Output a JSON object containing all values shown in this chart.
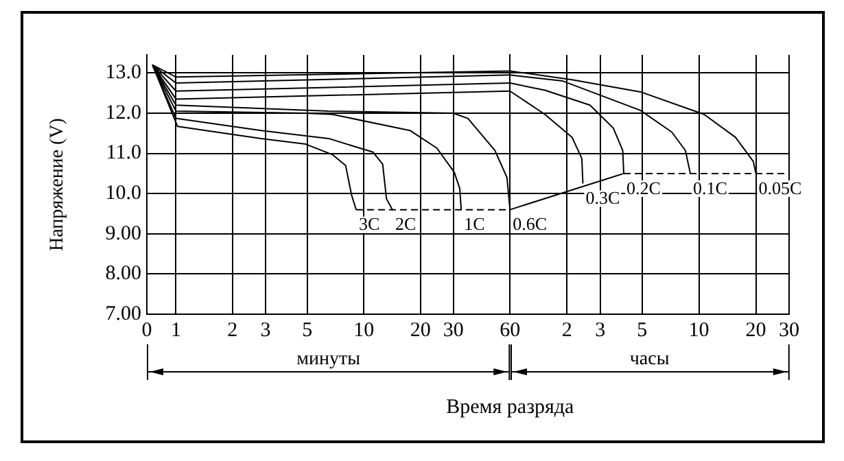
{
  "chart_data": [
    {
      "type": "line",
      "xlabel": "Время разряда",
      "ylabel": "Напряжение (V)",
      "log": "x",
      "xlim": [
        0,
        60
      ],
      "ylim": [
        7,
        13.45
      ],
      "xticks": [
        0,
        1,
        2,
        3,
        5,
        10,
        20,
        30,
        60
      ],
      "yticks": [
        {
          "value": 7,
          "label": "7.00"
        },
        {
          "value": 8,
          "label": "8.00"
        },
        {
          "value": 9,
          "label": "9.00"
        },
        {
          "value": 10,
          "label": "10.0"
        },
        {
          "value": 11,
          "label": "11.0"
        },
        {
          "value": 12,
          "label": "12.0"
        },
        {
          "value": 13,
          "label": "13.0"
        }
      ],
      "grid": true,
      "legend": false,
      "marker": "none",
      "series": [
        {
          "name": "3C",
          "color": "#000000",
          "x": [
            0.75,
            1.02,
            1.64,
            2.84,
            4.9,
            6.8,
            8.0,
            8.6,
            9.1
          ],
          "values": [
            13.2,
            11.67,
            11.53,
            11.37,
            11.23,
            10.97,
            10.7,
            9.97,
            9.6
          ]
        },
        {
          "name": "2C",
          "color": "#000000",
          "x": [
            0.75,
            1.0,
            2.84,
            6.5,
            11.2,
            12.6,
            13.2,
            14.2
          ],
          "values": [
            13.2,
            11.87,
            11.57,
            11.37,
            11.03,
            10.73,
            9.87,
            9.6
          ]
        },
        {
          "name": "1C",
          "color": "#000000",
          "x": [
            0.75,
            1.0,
            4.9,
            6.8,
            17.6,
            24.5,
            30.3,
            32.4,
            33
          ],
          "values": [
            13.2,
            12.05,
            12.0,
            11.97,
            11.57,
            11.13,
            10.53,
            10.13,
            9.6
          ]
        },
        {
          "name": "0.6C",
          "color": "#000000",
          "x": [
            0.75,
            1.0,
            6.5,
            30,
            35.8,
            49.9,
            57.8,
            60
          ],
          "values": [
            13.2,
            12.2,
            12.05,
            12.0,
            11.87,
            11.07,
            10.4,
            9.6
          ]
        },
        {
          "color": "#000000",
          "x": [
            0.75,
            1,
            60
          ],
          "values": [
            13.2,
            12.35,
            12.55
          ]
        },
        {
          "color": "#000000",
          "x": [
            0.75,
            1,
            60
          ],
          "values": [
            13.2,
            12.55,
            12.75
          ]
        },
        {
          "color": "#000000",
          "x": [
            0.75,
            1,
            60
          ],
          "values": [
            13.2,
            12.75,
            12.95
          ]
        },
        {
          "color": "#000000",
          "x": [
            0.75,
            1,
            60
          ],
          "values": [
            13.2,
            12.9,
            13.05
          ]
        },
        {
          "color": "#000000",
          "x": [
            9.1,
            60
          ],
          "values": [
            9.6,
            9.6
          ],
          "line_style": "dashed"
        }
      ],
      "annotations": [
        "минуты"
      ]
    },
    {
      "type": "line",
      "log": "x",
      "xlim": [
        1,
        30
      ],
      "ylim": [
        7,
        13.45
      ],
      "tick_labels": "x",
      "xticks": [
        2,
        3,
        5,
        10,
        20,
        30
      ],
      "yticks": [
        7,
        8,
        9,
        10,
        11,
        12,
        13
      ],
      "grid": true,
      "legend": false,
      "marker": "none",
      "series": [
        {
          "name": "0.3C",
          "color": "#000000",
          "x": [
            1,
            1.53,
            2.13,
            2.4,
            2.43
          ],
          "values": [
            12.55,
            11.97,
            11.4,
            10.87,
            10.25
          ]
        },
        {
          "name": "0.2C",
          "color": "#000000",
          "x": [
            1,
            1.53,
            2.65,
            3.52,
            3.95,
            4
          ],
          "values": [
            12.75,
            12.57,
            12.2,
            11.63,
            11.07,
            10.5
          ]
        },
        {
          "name": "0.1C",
          "color": "#000000",
          "x": [
            1,
            1.9,
            4.9,
            7.18,
            8.48,
            9.0
          ],
          "values": [
            12.95,
            12.8,
            12.07,
            11.53,
            11.07,
            10.5
          ]
        },
        {
          "name": "0.05C",
          "color": "#000000",
          "x": [
            1,
            2.13,
            4.9,
            10.65,
            15.6,
            19.4,
            20
          ],
          "values": [
            13.05,
            12.83,
            12.53,
            11.97,
            11.4,
            10.8,
            10.5
          ]
        },
        {
          "color": "#000000",
          "x": [
            1,
            4
          ],
          "values": [
            9.6,
            10.5
          ],
          "line_style": "solid"
        },
        {
          "color": "#000000",
          "x": [
            4,
            28.3
          ],
          "values": [
            10.5,
            10.5
          ],
          "line_style": "dashed"
        }
      ],
      "annotations": [
        "часы"
      ]
    }
  ]
}
